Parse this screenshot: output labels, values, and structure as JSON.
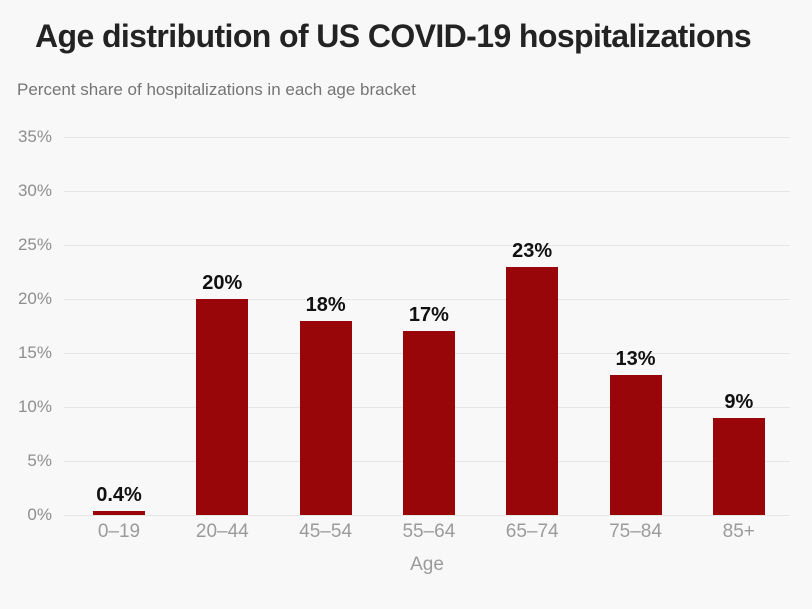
{
  "header": {
    "title": "Age distribution of US COVID-19 hospitalizations",
    "subtitle": "Percent share of hospitalizations in each age bracket"
  },
  "chart_data": {
    "type": "bar",
    "title": "Age distribution of US COVID-19 hospitalizations",
    "subtitle": "Percent share of hospitalizations in each age bracket",
    "categories": [
      "0–19",
      "20–44",
      "45–54",
      "55–64",
      "65–74",
      "75–84",
      "85+"
    ],
    "values": [
      0.4,
      20,
      18,
      17,
      23,
      13,
      9
    ],
    "value_labels": [
      "0.4%",
      "20%",
      "18%",
      "17%",
      "23%",
      "13%",
      "9%"
    ],
    "xlabel": "Age",
    "ylabel": "",
    "ylim": [
      0,
      35
    ],
    "yticks": [
      {
        "value": 0,
        "label": "0%"
      },
      {
        "value": 5,
        "label": "5%"
      },
      {
        "value": 10,
        "label": "10%"
      },
      {
        "value": 15,
        "label": "15%"
      },
      {
        "value": 20,
        "label": "20%"
      },
      {
        "value": 25,
        "label": "25%"
      },
      {
        "value": 30,
        "label": "30%"
      },
      {
        "value": 35,
        "label": "35%"
      }
    ],
    "grid": true,
    "legend": false,
    "colors": {
      "bar": "#990609",
      "background": "#f8f8f8",
      "gridline": "#e5e5e5",
      "y_axis_text": "#8e8e8e",
      "x_axis_text": "#9b9b9b",
      "value_label": "#111111",
      "title": "#232323",
      "subtitle": "#757575"
    }
  }
}
